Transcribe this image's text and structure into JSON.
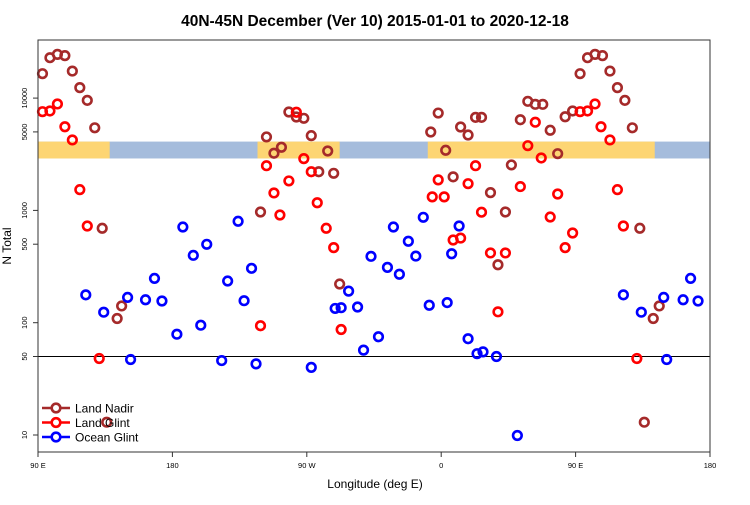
{
  "chart_data": {
    "type": "scatter",
    "title": "40N-45N December (Ver 10)   2015-01-01 to 2020-12-18",
    "xlabel": "Longitude (deg E)",
    "ylabel": "N Total",
    "x_units_note_free": true,
    "xlim": [
      90,
      540
    ],
    "x_ticks": [
      {
        "value": 90,
        "label": "90 E"
      },
      {
        "value": 180,
        "label": "180"
      },
      {
        "value": 270,
        "label": "90 W"
      },
      {
        "value": 360,
        "label": "0"
      },
      {
        "value": 450,
        "label": "90 E"
      },
      {
        "value": 540,
        "label": "180"
      }
    ],
    "y_scale": "log",
    "ylim": [
      8.5,
      36000
    ],
    "y_ticks": [
      {
        "value": 10,
        "label": "10"
      },
      {
        "value": 50,
        "label": "50"
      },
      {
        "value": 100,
        "label": "100"
      },
      {
        "value": 500,
        "label": "500"
      },
      {
        "value": 1000,
        "label": "1000"
      },
      {
        "value": 5000,
        "label": "5000"
      },
      {
        "value": 10000,
        "label": "10000"
      }
    ],
    "reference_line_y": 50,
    "grid": false,
    "legend_position": "bottom-left",
    "land_mask": {
      "y_range": [
        2900,
        4100
      ],
      "land_color": "#fdd573",
      "ocean_color": "#a5bcdc",
      "land_lon_ranges": [
        [
          90,
          138
        ],
        [
          237,
          292
        ],
        [
          351,
          503
        ]
      ]
    },
    "series": [
      {
        "name": "Land Nadir",
        "color": "#a52a2a",
        "points": [
          [
            93,
            16500
          ],
          [
            98,
            22900
          ],
          [
            103,
            24500
          ],
          [
            108,
            23900
          ],
          [
            113,
            17400
          ],
          [
            118,
            12400
          ],
          [
            123,
            9550
          ],
          [
            128,
            5440
          ],
          [
            133,
            693
          ],
          [
            136,
            13
          ],
          [
            143,
            109
          ],
          [
            146,
            141
          ],
          [
            239,
            968
          ],
          [
            243,
            4510
          ],
          [
            248,
            3230
          ],
          [
            253,
            3650
          ],
          [
            258,
            7520
          ],
          [
            263,
            6790
          ],
          [
            268,
            6610
          ],
          [
            273,
            4630
          ],
          [
            278,
            2210
          ],
          [
            284,
            3380
          ],
          [
            288,
            2140
          ],
          [
            292,
            221
          ],
          [
            353,
            4990
          ],
          [
            358,
            7360
          ],
          [
            363,
            3430
          ],
          [
            368,
            1990
          ],
          [
            373,
            5530
          ],
          [
            378,
            4690
          ],
          [
            383,
            6740
          ],
          [
            387,
            6740
          ],
          [
            393,
            1440
          ],
          [
            398,
            328
          ],
          [
            403,
            968
          ],
          [
            407,
            2540
          ],
          [
            413,
            6420
          ],
          [
            418,
            9360
          ],
          [
            423,
            8800
          ],
          [
            428,
            8800
          ],
          [
            433,
            5170
          ],
          [
            438,
            3200
          ],
          [
            443,
            6820
          ],
          [
            448,
            7680
          ],
          [
            453,
            16500
          ],
          [
            458,
            22900
          ],
          [
            463,
            24500
          ],
          [
            468,
            23900
          ],
          [
            473,
            17400
          ],
          [
            478,
            12400
          ],
          [
            483,
            9550
          ],
          [
            488,
            5440
          ],
          [
            493,
            693
          ],
          [
            496,
            13
          ],
          [
            502,
            109
          ],
          [
            506,
            141
          ]
        ]
      },
      {
        "name": "Land Glint",
        "color": "#ff0000",
        "points": [
          [
            93,
            7570
          ],
          [
            98,
            7680
          ],
          [
            103,
            8870
          ],
          [
            108,
            5560
          ],
          [
            113,
            4240
          ],
          [
            118,
            1530
          ],
          [
            123,
            726
          ],
          [
            131,
            48
          ],
          [
            239,
            94
          ],
          [
            243,
            2500
          ],
          [
            248,
            1430
          ],
          [
            252,
            910
          ],
          [
            258,
            1830
          ],
          [
            263,
            7480
          ],
          [
            268,
            2890
          ],
          [
            273,
            2210
          ],
          [
            277,
            1170
          ],
          [
            283,
            693
          ],
          [
            288,
            466
          ],
          [
            293,
            87
          ],
          [
            354,
            1320
          ],
          [
            358,
            1870
          ],
          [
            362,
            1320
          ],
          [
            368,
            545
          ],
          [
            373,
            567
          ],
          [
            378,
            1730
          ],
          [
            383,
            2500
          ],
          [
            387,
            964
          ],
          [
            393,
            418
          ],
          [
            398,
            125
          ],
          [
            403,
            418
          ],
          [
            413,
            1630
          ],
          [
            418,
            3770
          ],
          [
            423,
            6100
          ],
          [
            427,
            2930
          ],
          [
            433,
            873
          ],
          [
            438,
            1400
          ],
          [
            443,
            466
          ],
          [
            448,
            629
          ],
          [
            453,
            7570
          ],
          [
            458,
            7680
          ],
          [
            463,
            8870
          ],
          [
            467,
            5560
          ],
          [
            473,
            4240
          ],
          [
            478,
            1530
          ],
          [
            482,
            726
          ],
          [
            491,
            48
          ]
        ]
      },
      {
        "name": "Ocean Glint",
        "color": "#0000ff",
        "points": [
          [
            122,
            177
          ],
          [
            134,
            124
          ],
          [
            150,
            168
          ],
          [
            152,
            47
          ],
          [
            162,
            160
          ],
          [
            168,
            248
          ],
          [
            173,
            156
          ],
          [
            183,
            79
          ],
          [
            187,
            711
          ],
          [
            194,
            398
          ],
          [
            199,
            95
          ],
          [
            203,
            499
          ],
          [
            213,
            46
          ],
          [
            217,
            235
          ],
          [
            224,
            800
          ],
          [
            228,
            157
          ],
          [
            233,
            305
          ],
          [
            236,
            43
          ],
          [
            273,
            40
          ],
          [
            289,
            134
          ],
          [
            293,
            136
          ],
          [
            298,
            191
          ],
          [
            304,
            138
          ],
          [
            308,
            57
          ],
          [
            313,
            390
          ],
          [
            318,
            75
          ],
          [
            324,
            311
          ],
          [
            328,
            711
          ],
          [
            332,
            270
          ],
          [
            338,
            531
          ],
          [
            343,
            392
          ],
          [
            348,
            868
          ],
          [
            352,
            143
          ],
          [
            364,
            151
          ],
          [
            367,
            411
          ],
          [
            372,
            726
          ],
          [
            378,
            72
          ],
          [
            384,
            53
          ],
          [
            388,
            55
          ],
          [
            397,
            50
          ],
          [
            411,
            9.9
          ],
          [
            482,
            177
          ],
          [
            494,
            124
          ],
          [
            509,
            168
          ],
          [
            511,
            47
          ],
          [
            522,
            160
          ],
          [
            527,
            248
          ],
          [
            532,
            156
          ]
        ]
      }
    ]
  }
}
